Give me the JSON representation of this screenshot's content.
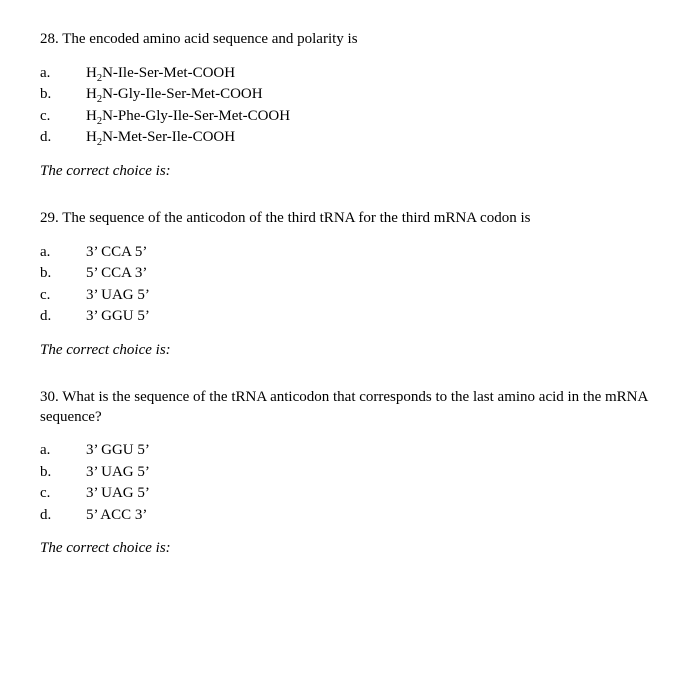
{
  "questions": [
    {
      "number": "28.",
      "stem": "The encoded amino acid sequence and polarity is",
      "choices": [
        {
          "letter": "a.",
          "html": "H<sub>2</sub>N-Ile-Ser-Met-COOH"
        },
        {
          "letter": "b.",
          "html": "H<sub>2</sub>N-Gly-Ile-Ser-Met-COOH"
        },
        {
          "letter": "c.",
          "html": "H<sub>2</sub>N-Phe-Gly-Ile-Ser-Met-COOH"
        },
        {
          "letter": "d.",
          "html": "H<sub>2</sub>N-Met-Ser-Ile-COOH"
        }
      ],
      "correct_label": "The correct choice is:"
    },
    {
      "number": "29.",
      "stem": "The sequence of the anticodon of the third tRNA for the third mRNA codon is",
      "choices": [
        {
          "letter": "a.",
          "html": "3’ CCA 5’"
        },
        {
          "letter": "b.",
          "html": "5’ CCA 3’"
        },
        {
          "letter": "c.",
          "html": "3’ UAG 5’"
        },
        {
          "letter": "d.",
          "html": "3’ GGU 5’"
        }
      ],
      "correct_label": "The correct choice is:"
    },
    {
      "number": "30.",
      "stem": "What is the sequence of the tRNA anticodon that corresponds to the last amino acid in the mRNA sequence?",
      "stem_indent": true,
      "choices": [
        {
          "letter": "a.",
          "html": "3’ GGU 5’"
        },
        {
          "letter": "b.",
          "html": "3’ UAG 5’"
        },
        {
          "letter": "c.",
          "html": "3’ UAG 5’"
        },
        {
          "letter": "d.",
          "html": "5’ ACC 3’"
        }
      ],
      "correct_label": "The correct choice is:"
    }
  ]
}
